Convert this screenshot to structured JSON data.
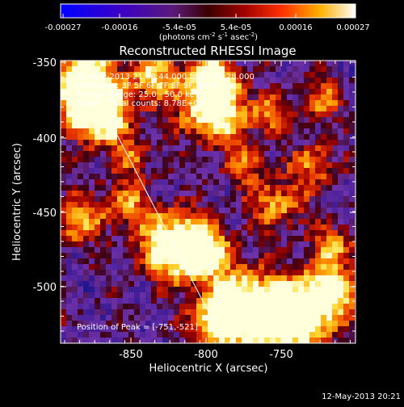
{
  "colorbar": {
    "tick_labels": [
      "-0.00027",
      "-0.00016",
      "-5.4e-05",
      "5.4e-05",
      "0.00016",
      "0.00027"
    ],
    "units_label": "(photons cm",
    "units_exp1": "-2",
    "units_mid": " s",
    "units_exp2": "-1",
    "units_mid2": " asec",
    "units_exp3": "-2",
    "units_end": ")"
  },
  "plot": {
    "title": "Reconstructed RHESSI Image",
    "x_label": "Heliocentric X (arcsec)",
    "y_label": "Heliocentric Y (arcsec)",
    "x_ticks": [
      "-850",
      "-800",
      "-750"
    ],
    "y_ticks": [
      "-350",
      "-400",
      "-450",
      "-500"
    ],
    "info_lines": [
      "12-May-2013 21:08:44.000 to 21:15:28.000",
      "Detectors: 3F 5F 6F 7F 8F 9F, Att 0",
      "Energy Range: 25.0 - 50.0 keV",
      "Clean    Total counts: 8.78E+03"
    ],
    "peak_text": "Position of Peak = [-751,-521]"
  },
  "footer": {
    "timestamp": "12-May-2013 20:21"
  },
  "colors": {
    "background": "#000000",
    "foreground": "#ffffff"
  }
}
